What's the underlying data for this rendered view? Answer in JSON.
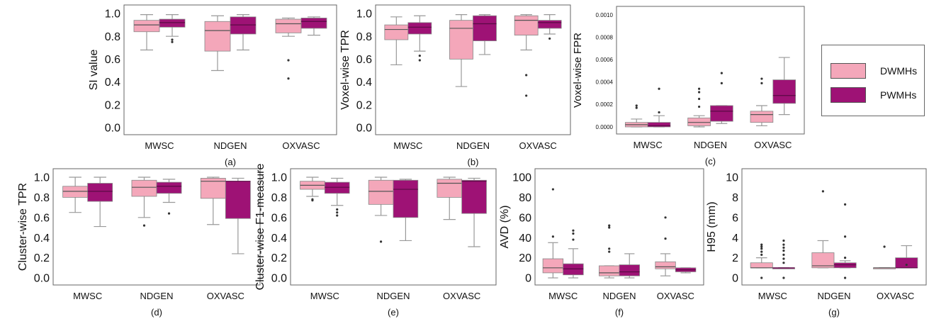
{
  "colors": {
    "DWMHs": "#f4a7ba",
    "PWMHs": "#9e1275",
    "whisker": "#999999",
    "median_dark": "#555555",
    "frame": "#666666"
  },
  "legend": {
    "items": [
      {
        "label": "DWMHs"
      },
      {
        "label": "PWMHs"
      }
    ]
  },
  "chart_data": [
    {
      "type": "box",
      "caption": "(a)",
      "ylabel": "SI value",
      "ylim": [
        0,
        1.0
      ],
      "yticks": [
        "0.0",
        "0.2",
        "0.4",
        "0.6",
        "0.8",
        "1.0"
      ],
      "tickvals": [
        0,
        0.2,
        0.4,
        0.6,
        0.8,
        1.0
      ],
      "categories": [
        "MWSC",
        "NDGEN",
        "OXVASC"
      ],
      "series": [
        {
          "name": "DWMHs",
          "boxes": [
            {
              "whislo": 0.68,
              "q1": 0.84,
              "med": 0.9,
              "q3": 0.94,
              "whishi": 0.99,
              "fliers": []
            },
            {
              "whislo": 0.5,
              "q1": 0.67,
              "med": 0.85,
              "q3": 0.93,
              "whishi": 0.98,
              "fliers": []
            },
            {
              "whislo": 0.8,
              "q1": 0.83,
              "med": 0.91,
              "q3": 0.95,
              "whishi": 0.96,
              "fliers": [
                0.59,
                0.43
              ]
            }
          ]
        },
        {
          "name": "PWMHs",
          "boxes": [
            {
              "whislo": 0.8,
              "q1": 0.88,
              "med": 0.92,
              "q3": 0.95,
              "whishi": 0.99,
              "fliers": [
                0.77,
                0.75
              ]
            },
            {
              "whislo": 0.68,
              "q1": 0.82,
              "med": 0.9,
              "q3": 0.97,
              "whishi": 0.99,
              "fliers": []
            },
            {
              "whislo": 0.81,
              "q1": 0.87,
              "med": 0.93,
              "q3": 0.96,
              "whishi": 0.97,
              "fliers": []
            }
          ]
        }
      ]
    },
    {
      "type": "box",
      "caption": "(b)",
      "ylabel": "Voxel-wise TPR",
      "ylim": [
        0,
        1.0
      ],
      "yticks": [
        "0.0",
        "0.2",
        "0.4",
        "0.6",
        "0.8",
        "1.0"
      ],
      "tickvals": [
        0,
        0.2,
        0.4,
        0.6,
        0.8,
        1.0
      ],
      "categories": [
        "MWSC",
        "NDGEN",
        "OXVASC"
      ],
      "series": [
        {
          "name": "DWMHs",
          "boxes": [
            {
              "whislo": 0.55,
              "q1": 0.77,
              "med": 0.86,
              "q3": 0.9,
              "whishi": 0.97,
              "fliers": []
            },
            {
              "whislo": 0.36,
              "q1": 0.6,
              "med": 0.87,
              "q3": 0.94,
              "whishi": 0.99,
              "fliers": []
            },
            {
              "whislo": 0.68,
              "q1": 0.81,
              "med": 0.94,
              "q3": 0.98,
              "whishi": 0.99,
              "fliers": [
                0.46,
                0.28
              ]
            }
          ]
        },
        {
          "name": "PWMHs",
          "boxes": [
            {
              "whislo": 0.67,
              "q1": 0.82,
              "med": 0.88,
              "q3": 0.92,
              "whishi": 0.98,
              "fliers": [
                0.63,
                0.59
              ]
            },
            {
              "whislo": 0.64,
              "q1": 0.76,
              "med": 0.91,
              "q3": 0.98,
              "whishi": 0.99,
              "fliers": []
            },
            {
              "whislo": 0.82,
              "q1": 0.87,
              "med": 0.92,
              "q3": 0.94,
              "whishi": 0.99,
              "fliers": [
                0.78
              ]
            }
          ]
        }
      ]
    },
    {
      "type": "box",
      "caption": "(c)",
      "ylabel": "Voxel-wise FPR",
      "ylim": [
        0,
        0.001
      ],
      "yticks": [
        "0.0000",
        "0.0002",
        "0.0004",
        "0.0006",
        "0.0008",
        "0.0010"
      ],
      "tickvals": [
        0,
        0.0002,
        0.0004,
        0.0006,
        0.0008,
        0.001
      ],
      "categories": [
        "MWSC",
        "NDGEN",
        "OXVASC"
      ],
      "series": [
        {
          "name": "DWMHs",
          "boxes": [
            {
              "whislo": 0.0,
              "q1": 0.0,
              "med": 2e-05,
              "q3": 4e-05,
              "whishi": 7e-05,
              "fliers": [
                0.00017,
                0.00019
              ]
            },
            {
              "whislo": 0.0,
              "q1": 1e-05,
              "med": 4e-05,
              "q3": 8e-05,
              "whishi": 0.0001,
              "fliers": [
                0.00018,
                0.00025,
                0.00031,
                0.00034
              ]
            },
            {
              "whislo": 1e-05,
              "q1": 4e-05,
              "med": 0.00011,
              "q3": 0.00014,
              "whishi": 0.00019,
              "fliers": [
                0.00039,
                0.00043
              ]
            }
          ]
        },
        {
          "name": "PWMHs",
          "boxes": [
            {
              "whislo": 0.0,
              "q1": 0.0,
              "med": 1e-05,
              "q3": 4e-05,
              "whishi": 0.0001,
              "fliers": [
                0.00013,
                0.00034
              ]
            },
            {
              "whislo": 3e-05,
              "q1": 5e-05,
              "med": 0.00014,
              "q3": 0.00019,
              "whishi": 0.00019,
              "fliers": [
                0.00039,
                0.00048
              ]
            },
            {
              "whislo": 0.00011,
              "q1": 0.00021,
              "med": 0.00028,
              "q3": 0.00042,
              "whishi": 0.00062,
              "fliers": []
            }
          ]
        }
      ]
    },
    {
      "type": "box",
      "caption": "(d)",
      "ylabel": "Cluster-wise TPR",
      "ylim": [
        0,
        1.0
      ],
      "yticks": [
        "0.0",
        "0.2",
        "0.4",
        "0.6",
        "0.8",
        "1.0"
      ],
      "tickvals": [
        0,
        0.2,
        0.4,
        0.6,
        0.8,
        1.0
      ],
      "categories": [
        "MWSC",
        "NDGEN",
        "OXVASC"
      ],
      "series": [
        {
          "name": "DWMHs",
          "boxes": [
            {
              "whislo": 0.65,
              "q1": 0.8,
              "med": 0.86,
              "q3": 0.91,
              "whishi": 1.0,
              "fliers": []
            },
            {
              "whislo": 0.6,
              "q1": 0.81,
              "med": 0.9,
              "q3": 0.97,
              "whishi": 1.0,
              "fliers": [
                0.52
              ]
            },
            {
              "whislo": 0.53,
              "q1": 0.79,
              "med": 0.96,
              "q3": 0.99,
              "whishi": 1.0,
              "fliers": []
            }
          ]
        },
        {
          "name": "PWMHs",
          "boxes": [
            {
              "whislo": 0.51,
              "q1": 0.76,
              "med": 0.86,
              "q3": 0.94,
              "whishi": 1.0,
              "fliers": []
            },
            {
              "whislo": 0.75,
              "q1": 0.84,
              "med": 0.91,
              "q3": 0.95,
              "whishi": 0.98,
              "fliers": [
                0.64
              ]
            },
            {
              "whislo": 0.24,
              "q1": 0.59,
              "med": 0.96,
              "q3": 0.96,
              "whishi": 0.99,
              "fliers": []
            }
          ]
        }
      ]
    },
    {
      "type": "box",
      "caption": "(e)",
      "ylabel": "Cluster-wise F1-measure",
      "ylim": [
        0,
        1.0
      ],
      "yticks": [
        "0.0",
        "0.2",
        "0.4",
        "0.6",
        "0.8",
        "1.0"
      ],
      "tickvals": [
        0,
        0.2,
        0.4,
        0.6,
        0.8,
        1.0
      ],
      "categories": [
        "MWSC",
        "NDGEN",
        "OXVASC"
      ],
      "series": [
        {
          "name": "DWMHs",
          "boxes": [
            {
              "whislo": 0.81,
              "q1": 0.88,
              "med": 0.92,
              "q3": 0.96,
              "whishi": 1.0,
              "fliers": [
                0.78,
                0.77
              ]
            },
            {
              "whislo": 0.62,
              "q1": 0.73,
              "med": 0.86,
              "q3": 0.97,
              "whishi": 1.0,
              "fliers": [
                0.36
              ]
            },
            {
              "whislo": 0.58,
              "q1": 0.8,
              "med": 0.94,
              "q3": 0.98,
              "whishi": 1.0,
              "fliers": []
            }
          ]
        },
        {
          "name": "PWMHs",
          "boxes": [
            {
              "whislo": 0.72,
              "q1": 0.84,
              "med": 0.9,
              "q3": 0.95,
              "whishi": 0.99,
              "fliers": [
                0.68,
                0.65,
                0.62
              ]
            },
            {
              "whislo": 0.37,
              "q1": 0.6,
              "med": 0.88,
              "q3": 0.97,
              "whishi": 0.98,
              "fliers": []
            },
            {
              "whislo": 0.31,
              "q1": 0.64,
              "med": 0.96,
              "q3": 0.97,
              "whishi": 0.99,
              "fliers": []
            }
          ]
        }
      ]
    },
    {
      "type": "box",
      "caption": "(f)",
      "ylabel": "AVD (%)",
      "ylim": [
        0,
        100
      ],
      "yticks": [
        "0",
        "20",
        "40",
        "60",
        "80",
        "100"
      ],
      "tickvals": [
        0,
        20,
        40,
        60,
        80,
        100
      ],
      "categories": [
        "MWSC",
        "NDGEN",
        "OXVASC"
      ],
      "series": [
        {
          "name": "DWMHs",
          "boxes": [
            {
              "whislo": 0,
              "q1": 5,
              "med": 10,
              "q3": 19,
              "whishi": 35,
              "fliers": [
                41,
                88
              ]
            },
            {
              "whislo": 0,
              "q1": 2,
              "med": 5,
              "q3": 12,
              "whishi": 12,
              "fliers": [
                26,
                29,
                50,
                52
              ]
            },
            {
              "whislo": 2,
              "q1": 9,
              "med": 11,
              "q3": 16,
              "whishi": 24,
              "fliers": [
                39,
                60
              ]
            }
          ]
        },
        {
          "name": "PWMHs",
          "boxes": [
            {
              "whislo": 0,
              "q1": 3,
              "med": 9,
              "q3": 14,
              "whishi": 29,
              "fliers": [
                38,
                44,
                47
              ]
            },
            {
              "whislo": 0,
              "q1": 2,
              "med": 6,
              "q3": 13,
              "whishi": 24,
              "fliers": []
            },
            {
              "whislo": 5,
              "q1": 6,
              "med": 8,
              "q3": 10,
              "whishi": 10,
              "fliers": []
            }
          ]
        }
      ]
    },
    {
      "type": "box",
      "caption": "(g)",
      "ylabel": "H95 (mm)",
      "ylim": [
        0,
        10
      ],
      "yticks": [
        "0",
        "2",
        "4",
        "6",
        "8",
        "10"
      ],
      "tickvals": [
        0,
        2,
        4,
        6,
        8,
        10
      ],
      "categories": [
        "MWSC",
        "NDGEN",
        "OXVASC"
      ],
      "series": [
        {
          "name": "DWMHs",
          "boxes": [
            {
              "whislo": 1.0,
              "q1": 1.0,
              "med": 1.0,
              "q3": 1.5,
              "whishi": 2.0,
              "fliers": [
                0,
                2.3,
                2.6,
                2.9,
                3.1,
                3.3
              ]
            },
            {
              "whislo": 1.0,
              "q1": 1.0,
              "med": 1.2,
              "q3": 2.5,
              "whishi": 3.7,
              "fliers": [
                8.6
              ]
            },
            {
              "whislo": 1.0,
              "q1": 1.0,
              "med": 1.0,
              "q3": 1.0,
              "whishi": 1.0,
              "fliers": [
                3.1
              ]
            }
          ]
        },
        {
          "name": "PWMHs",
          "boxes": [
            {
              "whislo": 1.0,
              "q1": 1.0,
              "med": 1.0,
              "q3": 1.0,
              "whishi": 1.0,
              "fliers": [
                0,
                1.5,
                1.9,
                2.3,
                2.7,
                3.0,
                3.3,
                3.7
              ]
            },
            {
              "whislo": 1.0,
              "q1": 1.0,
              "med": 1.3,
              "q3": 1.5,
              "whishi": 1.7,
              "fliers": [
                0,
                2.0,
                4.1,
                7.3
              ]
            },
            {
              "whislo": 1.0,
              "q1": 1.0,
              "med": 1.0,
              "q3": 2.0,
              "whishi": 3.2,
              "fliers": [
                1.3
              ]
            }
          ]
        }
      ]
    }
  ]
}
